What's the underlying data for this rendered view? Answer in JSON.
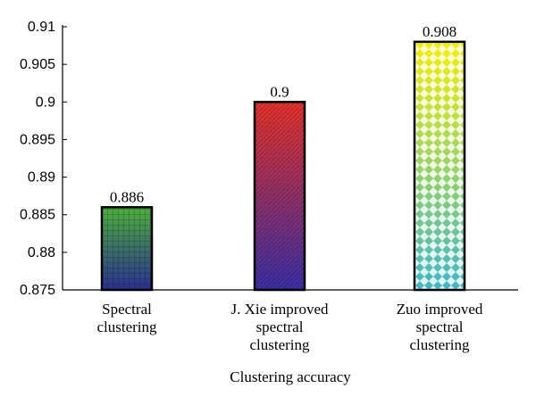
{
  "chart_data": {
    "type": "bar",
    "categories": [
      "Spectral clustering",
      "J. Xie improved spectral clustering",
      "Zuo improved spectral clustering"
    ],
    "category_label_lines": [
      [
        "Spectral",
        "clustering"
      ],
      [
        "J. Xie improved",
        "spectral",
        "clustering"
      ],
      [
        "Zuo improved",
        "spectral",
        "clustering"
      ]
    ],
    "values": [
      0.886,
      0.9,
      0.908
    ],
    "value_labels": [
      "0.886",
      "0.9",
      "0.908"
    ],
    "xlabel": "Clustering accuracy",
    "ylabel": "",
    "ylim": [
      0.875,
      0.91
    ],
    "yticks": [
      0.875,
      0.88,
      0.885,
      0.89,
      0.895,
      0.9,
      0.905,
      0.91
    ],
    "ytick_labels": [
      "0.875",
      "0.88",
      "0.885",
      "0.89",
      "0.895",
      "0.9",
      "0.905",
      "0.91"
    ],
    "grid": false,
    "legend": "none",
    "bar_fills": [
      {
        "pattern": "grid",
        "top_color": "#4caf3c",
        "bottom_color": "#2a2f8f"
      },
      {
        "pattern": "diagonal",
        "top_color": "#e8322a",
        "bottom_color": "#3b2fa8"
      },
      {
        "pattern": "diamond",
        "top_color": "#f5f000",
        "bottom_color": "#3fb8c8"
      }
    ]
  }
}
